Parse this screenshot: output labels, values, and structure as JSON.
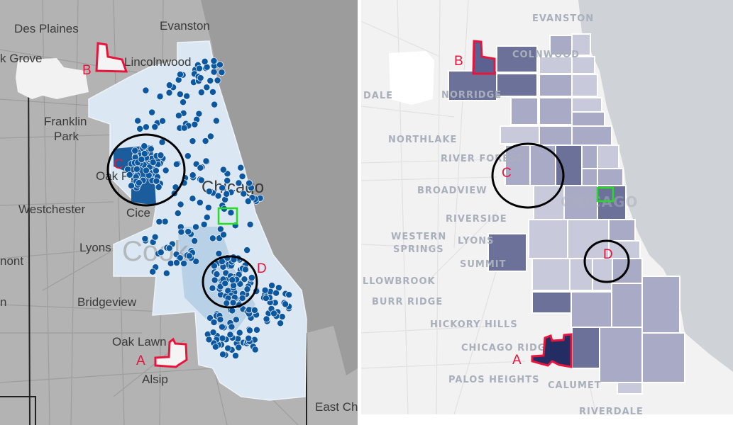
{
  "left_map": {
    "labels": {
      "des_plaines": "Des Plaines",
      "evanston": "Evanston",
      "elk_grove": "k Grove",
      "lincolnwood": "Lincolnwood",
      "franklin": "Franklin",
      "park": "Park",
      "oak_park": "Oak P",
      "chicago": "Chicago",
      "westchester": "Westchester",
      "cicero": "Cice",
      "lyons": "Lyons",
      "cook": "Cook",
      "belmont": "nont",
      "bridgeview": "Bridgeview",
      "n": "n",
      "oak_lawn": "Oak Lawn",
      "alsip": "Alsip",
      "east_chicago": "East Ch"
    },
    "markers": {
      "a": "A",
      "b": "B",
      "c": "C",
      "d": "D"
    },
    "colors": {
      "land": "#b3b3b3",
      "lake": "#9c9c9c",
      "city": "#dbe7f2",
      "dot": "#0b57a0"
    }
  },
  "right_map": {
    "labels": {
      "evanston": "EVANSTON",
      "lincolnwood": "COLNWOOD",
      "dale": "DALE",
      "norridge": "NORRIDGE",
      "northlake": "NORTHLAKE",
      "river_forest": "RIVER FOREST",
      "broadview": "BROADVIEW",
      "riverside": "RIVERSIDE",
      "western": "WESTERN",
      "springs": "SPRINGS",
      "lyons": "LYONS",
      "summit": "SUMMIT",
      "willowbrook": "LLOWBROOK",
      "burr_ridge": "BURR RIDGE",
      "hickory_hills": "HICKORY HILLS",
      "chicago_ridge": "CHICAGO RIDGE",
      "palos_heights": "PALOS HEIGHTS",
      "calumet": "CALUMET",
      "riverdale": "RIVERDALE",
      "chicago": "CHICAGO"
    },
    "markers": {
      "a": "A",
      "b": "B",
      "c": "C",
      "d": "D"
    },
    "colors": {
      "land": "#f2f2f2",
      "lake": "#cfd2d6",
      "light": "#c8cadb",
      "mid": "#a9abc6",
      "dark": "#6c7199",
      "darkest": "#232d64"
    }
  },
  "annotation_colors": {
    "marker": "#e8143c",
    "circle": "#000000",
    "highlight": "#22dd22"
  }
}
